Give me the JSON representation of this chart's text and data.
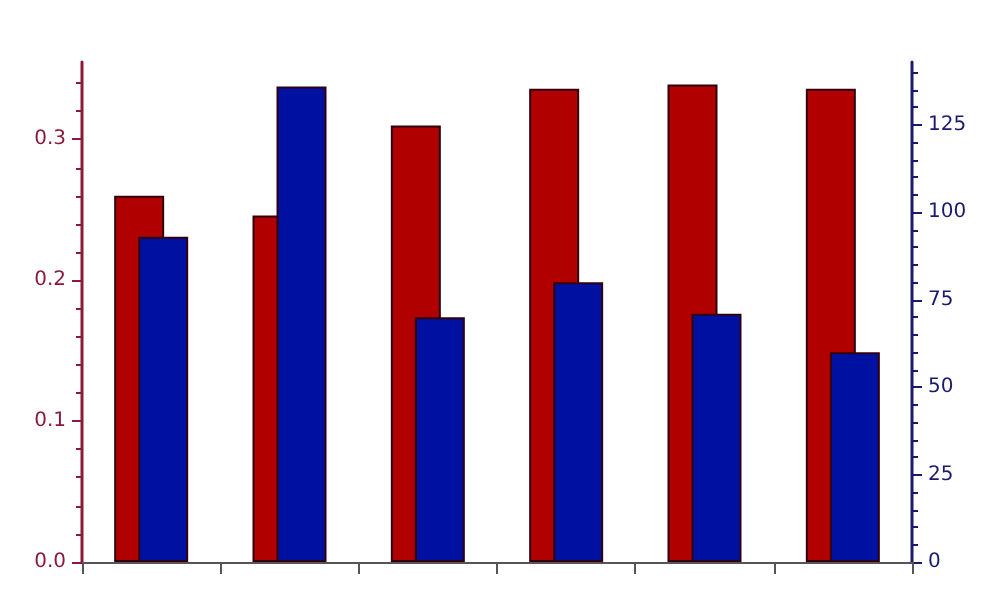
{
  "chart_data": {
    "type": "bar",
    "categories": [
      null,
      null,
      null,
      null,
      null,
      null
    ],
    "series": [
      {
        "color": "#b00000",
        "values": [
          0.26,
          0.246,
          0.31,
          0.336,
          0.339,
          0.336
        ]
      },
      {
        "color": "#0010a0",
        "axis": "y2",
        "values": [
          93,
          136,
          70,
          80,
          71,
          60
        ]
      }
    ],
    "ylim": [
      0,
      0.355
    ],
    "yticks": [
      {
        "value": 0,
        "label": "0.0"
      },
      0.1,
      0.2,
      0.3
    ],
    "y2lim": [
      0,
      143
    ],
    "y2ticks": [
      0,
      25,
      50,
      75,
      100,
      125
    ],
    "tick_labels": "y"
  }
}
